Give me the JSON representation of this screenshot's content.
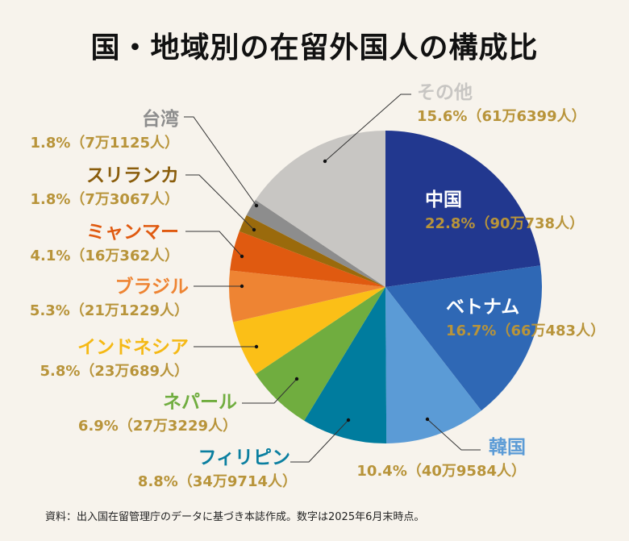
{
  "chart_data": {
    "type": "pie",
    "title": "国・地域別の在留外国人の構成比",
    "start": "top",
    "direction": "clockwise",
    "slices": [
      {
        "label": "中国",
        "percent": 22.8,
        "count": "90万738人",
        "value_text": "22.8%（90万738人）",
        "color": "#22388f",
        "label_color": "#ffffff"
      },
      {
        "label": "ベトナム",
        "percent": 16.7,
        "count": "66万483人",
        "value_text": "16.7%（66万483人）",
        "color": "#2f68b5",
        "label_color": "#ffffff"
      },
      {
        "label": "韓国",
        "percent": 10.4,
        "count": "40万9584人",
        "value_text": "10.4%（40万9584人）",
        "color": "#5b9bd6",
        "label_color": "#5b9bd6"
      },
      {
        "label": "フィリピン",
        "percent": 8.8,
        "count": "34万9714人",
        "value_text": "8.8%（34万9714人）",
        "color": "#007c9e",
        "label_color": "#0a7fa0"
      },
      {
        "label": "ネパール",
        "percent": 6.9,
        "count": "27万3229人",
        "value_text": "6.9%（27万3229人）",
        "color": "#70ad3f",
        "label_color": "#70ad3f"
      },
      {
        "label": "インドネシア",
        "percent": 5.8,
        "count": "23万689人",
        "value_text": "5.8%（23万689人）",
        "color": "#fbbf17",
        "label_color": "#f5b915"
      },
      {
        "label": "ブラジル",
        "percent": 5.3,
        "count": "21万1229人",
        "value_text": "5.3%（21万1229人）",
        "color": "#ee8433",
        "label_color": "#ee8433"
      },
      {
        "label": "ミャンマー",
        "percent": 4.1,
        "count": "16万362人",
        "value_text": "4.1%（16万362人）",
        "color": "#e05a10",
        "label_color": "#e05a10"
      },
      {
        "label": "スリランカ",
        "percent": 1.8,
        "count": "7万3067人",
        "value_text": "1.8%（7万3067人）",
        "color": "#9a6a0c",
        "label_color": "#8a5d0c"
      },
      {
        "label": "台湾",
        "percent": 1.8,
        "count": "7万1125人",
        "value_text": "1.8%（7万1125人）",
        "color": "#8d8d8d",
        "label_color": "#8d8d8d"
      },
      {
        "label": "その他",
        "percent": 15.6,
        "count": "61万6399人",
        "value_text": "15.6%（61万6399人）",
        "color": "#c8c6c3",
        "label_color": "#c8c6c3"
      }
    ],
    "value_color": "#b8943a"
  },
  "source": "資料：出入国在留管理庁のデータに基づき本誌作成。数字は2025年6月末時点。"
}
